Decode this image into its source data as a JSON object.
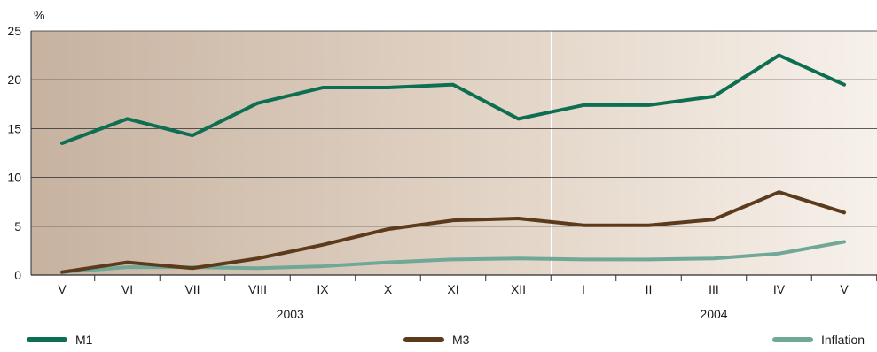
{
  "chart_data": {
    "type": "line",
    "ylabel": "%",
    "ylim": [
      0,
      25
    ],
    "yticks": [
      0,
      5,
      10,
      15,
      20,
      25
    ],
    "categories": [
      "V",
      "VI",
      "VII",
      "VIII",
      "IX",
      "X",
      "XI",
      "XII",
      "I",
      "II",
      "III",
      "IV",
      "V"
    ],
    "year_groups": [
      {
        "label": "2003",
        "start": 0,
        "end": 7
      },
      {
        "label": "2004",
        "start": 8,
        "end": 12
      }
    ],
    "grid": true,
    "legend_position": "bottom",
    "series": [
      {
        "name": "M1",
        "color": "#0e6e52",
        "values": [
          13.5,
          16.0,
          14.3,
          17.6,
          19.2,
          19.2,
          19.5,
          16.0,
          17.4,
          17.4,
          18.3,
          22.5,
          19.5
        ]
      },
      {
        "name": "M3",
        "color": "#5c3a1c",
        "values": [
          0.3,
          1.3,
          0.7,
          1.7,
          3.1,
          4.7,
          5.6,
          5.8,
          5.1,
          5.1,
          5.7,
          8.5,
          6.4
        ]
      },
      {
        "name": "Inflation",
        "color": "#6fa896",
        "values": [
          0.3,
          0.8,
          0.8,
          0.7,
          0.9,
          1.3,
          1.6,
          1.7,
          1.6,
          1.6,
          1.7,
          2.2,
          3.4
        ]
      }
    ]
  }
}
